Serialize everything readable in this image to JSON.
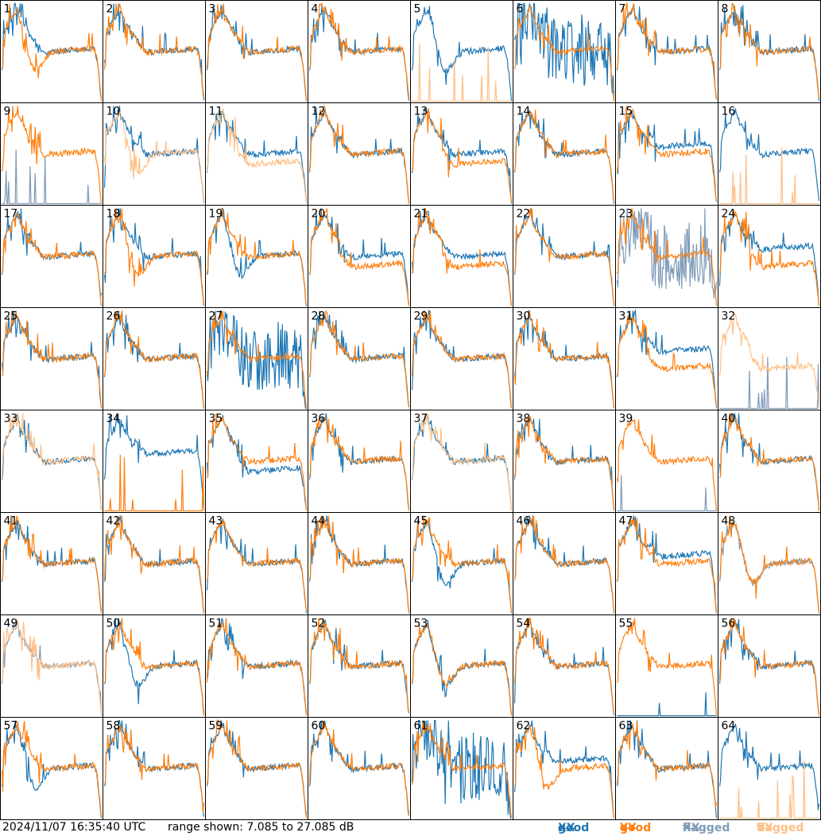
{
  "footer": {
    "timestamp": "2024/11/07 16:35:40 UTC",
    "range": "range shown: 7.085 to 27.085 dB"
  },
  "legend": [
    {
      "prefix": "good ",
      "pol": "XX",
      "color": "#1f77b4"
    },
    {
      "prefix": "good ",
      "pol": "YY",
      "color": "#ff7f0e"
    },
    {
      "prefix": "flagged ",
      "pol": "XX",
      "color": "#7f9bb8"
    },
    {
      "prefix": "flagged ",
      "pol": "YY",
      "color": "#ffbf86"
    }
  ],
  "colors": {
    "good_xx": "#1f77b4",
    "good_yy": "#ff7f0e",
    "flagged_xx": "#7f9bb8",
    "flagged_yy": "#ffbf86",
    "border": "#000000"
  },
  "chart_data": {
    "type": "line",
    "grid": "8x8 small multiples, one panel per input",
    "ylim_db": [
      7.085,
      27.085
    ],
    "series_names": [
      "XX",
      "YY"
    ],
    "panels": [
      {
        "label": "1",
        "xx": "good",
        "yy": "good",
        "xx_shape": "normal",
        "yy_shape": "dip"
      },
      {
        "label": "2",
        "xx": "good",
        "yy": "good",
        "xx_shape": "normal",
        "yy_shape": "normal"
      },
      {
        "label": "3",
        "xx": "good",
        "yy": "good",
        "xx_shape": "normal",
        "yy_shape": "normal"
      },
      {
        "label": "4",
        "xx": "good",
        "yy": "good",
        "xx_shape": "normal",
        "yy_shape": "normal"
      },
      {
        "label": "5",
        "xx": "good",
        "yy": "flagged",
        "xx_shape": "dip",
        "yy_shape": "dead"
      },
      {
        "label": "6",
        "xx": "good",
        "yy": "good",
        "xx_shape": "noisy",
        "yy_shape": "normal"
      },
      {
        "label": "7",
        "xx": "good",
        "yy": "good",
        "xx_shape": "normal",
        "yy_shape": "normal"
      },
      {
        "label": "8",
        "xx": "good",
        "yy": "good",
        "xx_shape": "normal",
        "yy_shape": "normal"
      },
      {
        "label": "9",
        "xx": "flagged",
        "yy": "good",
        "xx_shape": "dead",
        "yy_shape": "normal"
      },
      {
        "label": "10",
        "xx": "good",
        "yy": "flagged",
        "xx_shape": "normal",
        "yy_shape": "dip"
      },
      {
        "label": "11",
        "xx": "good",
        "yy": "flagged",
        "xx_shape": "normal",
        "yy_shape": "low"
      },
      {
        "label": "12",
        "xx": "good",
        "yy": "good",
        "xx_shape": "normal",
        "yy_shape": "normal"
      },
      {
        "label": "13",
        "xx": "good",
        "yy": "good",
        "xx_shape": "normal",
        "yy_shape": "low"
      },
      {
        "label": "14",
        "xx": "good",
        "yy": "good",
        "xx_shape": "normal",
        "yy_shape": "normal"
      },
      {
        "label": "15",
        "xx": "good",
        "yy": "good",
        "xx_shape": "high",
        "yy_shape": "normal"
      },
      {
        "label": "16",
        "xx": "good",
        "yy": "flagged",
        "xx_shape": "normal",
        "yy_shape": "dead"
      },
      {
        "label": "17",
        "xx": "good",
        "yy": "good",
        "xx_shape": "normal",
        "yy_shape": "normal"
      },
      {
        "label": "18",
        "xx": "good",
        "yy": "good",
        "xx_shape": "normal",
        "yy_shape": "dip"
      },
      {
        "label": "19",
        "xx": "good",
        "yy": "good",
        "xx_shape": "dip",
        "yy_shape": "normal"
      },
      {
        "label": "20",
        "xx": "good",
        "yy": "good",
        "xx_shape": "normal",
        "yy_shape": "low"
      },
      {
        "label": "21",
        "xx": "good",
        "yy": "good",
        "xx_shape": "normal",
        "yy_shape": "low"
      },
      {
        "label": "22",
        "xx": "good",
        "yy": "good",
        "xx_shape": "normal",
        "yy_shape": "normal"
      },
      {
        "label": "23",
        "xx": "flagged",
        "yy": "good",
        "xx_shape": "noisy",
        "yy_shape": "normal"
      },
      {
        "label": "24",
        "xx": "good",
        "yy": "good",
        "xx_shape": "high",
        "yy_shape": "low"
      },
      {
        "label": "25",
        "xx": "good",
        "yy": "good",
        "xx_shape": "normal",
        "yy_shape": "normal"
      },
      {
        "label": "26",
        "xx": "good",
        "yy": "good",
        "xx_shape": "normal",
        "yy_shape": "normal"
      },
      {
        "label": "27",
        "xx": "good",
        "yy": "good",
        "xx_shape": "noisy",
        "yy_shape": "normal"
      },
      {
        "label": "28",
        "xx": "good",
        "yy": "good",
        "xx_shape": "normal",
        "yy_shape": "normal"
      },
      {
        "label": "29",
        "xx": "good",
        "yy": "good",
        "xx_shape": "normal",
        "yy_shape": "normal"
      },
      {
        "label": "30",
        "xx": "good",
        "yy": "good",
        "xx_shape": "normal",
        "yy_shape": "normal"
      },
      {
        "label": "31",
        "xx": "good",
        "yy": "good",
        "xx_shape": "high",
        "yy_shape": "low"
      },
      {
        "label": "32",
        "xx": "flagged",
        "yy": "flagged",
        "xx_shape": "dead",
        "yy_shape": "low"
      },
      {
        "label": "33",
        "xx": "good",
        "yy": "flagged",
        "xx_shape": "normal",
        "yy_shape": "normal"
      },
      {
        "label": "34",
        "xx": "good",
        "yy": "good",
        "xx_shape": "high",
        "yy_shape": "dead"
      },
      {
        "label": "35",
        "xx": "good",
        "yy": "good",
        "xx_shape": "low",
        "yy_shape": "normal"
      },
      {
        "label": "36",
        "xx": "good",
        "yy": "good",
        "xx_shape": "normal",
        "yy_shape": "normal"
      },
      {
        "label": "37",
        "xx": "good",
        "yy": "flagged",
        "xx_shape": "normal",
        "yy_shape": "normal"
      },
      {
        "label": "38",
        "xx": "good",
        "yy": "good",
        "xx_shape": "normal",
        "yy_shape": "normal"
      },
      {
        "label": "39",
        "xx": "flagged",
        "yy": "good",
        "xx_shape": "dead",
        "yy_shape": "normal"
      },
      {
        "label": "40",
        "xx": "good",
        "yy": "good",
        "xx_shape": "normal",
        "yy_shape": "normal"
      },
      {
        "label": "41",
        "xx": "good",
        "yy": "good",
        "xx_shape": "normal",
        "yy_shape": "normal"
      },
      {
        "label": "42",
        "xx": "good",
        "yy": "good",
        "xx_shape": "normal",
        "yy_shape": "normal"
      },
      {
        "label": "43",
        "xx": "good",
        "yy": "good",
        "xx_shape": "normal",
        "yy_shape": "normal"
      },
      {
        "label": "44",
        "xx": "good",
        "yy": "good",
        "xx_shape": "normal",
        "yy_shape": "normal"
      },
      {
        "label": "45",
        "xx": "good",
        "yy": "good",
        "xx_shape": "dip",
        "yy_shape": "normal"
      },
      {
        "label": "46",
        "xx": "good",
        "yy": "good",
        "xx_shape": "normal",
        "yy_shape": "normal"
      },
      {
        "label": "47",
        "xx": "good",
        "yy": "good",
        "xx_shape": "high",
        "yy_shape": "normal"
      },
      {
        "label": "48",
        "xx": "flagged",
        "yy": "good",
        "xx_shape": "dip",
        "yy_shape": "dip"
      },
      {
        "label": "49",
        "xx": "flagged",
        "yy": "flagged",
        "xx_shape": "normal",
        "yy_shape": "normal"
      },
      {
        "label": "50",
        "xx": "good",
        "yy": "good",
        "xx_shape": "dip",
        "yy_shape": "normal"
      },
      {
        "label": "51",
        "xx": "good",
        "yy": "good",
        "xx_shape": "normal",
        "yy_shape": "normal"
      },
      {
        "label": "52",
        "xx": "good",
        "yy": "good",
        "xx_shape": "normal",
        "yy_shape": "normal"
      },
      {
        "label": "53",
        "xx": "good",
        "yy": "good",
        "xx_shape": "dip",
        "yy_shape": "dip"
      },
      {
        "label": "54",
        "xx": "good",
        "yy": "good",
        "xx_shape": "normal",
        "yy_shape": "normal"
      },
      {
        "label": "55",
        "xx": "good",
        "yy": "good",
        "xx_shape": "dead",
        "yy_shape": "normal"
      },
      {
        "label": "56",
        "xx": "good",
        "yy": "good",
        "xx_shape": "normal",
        "yy_shape": "normal"
      },
      {
        "label": "57",
        "xx": "good",
        "yy": "good",
        "xx_shape": "dip",
        "yy_shape": "normal"
      },
      {
        "label": "58",
        "xx": "good",
        "yy": "good",
        "xx_shape": "normal",
        "yy_shape": "normal"
      },
      {
        "label": "59",
        "xx": "good",
        "yy": "good",
        "xx_shape": "normal",
        "yy_shape": "normal"
      },
      {
        "label": "60",
        "xx": "good",
        "yy": "good",
        "xx_shape": "normal",
        "yy_shape": "normal"
      },
      {
        "label": "61",
        "xx": "good",
        "yy": "good",
        "xx_shape": "noisy",
        "yy_shape": "normal"
      },
      {
        "label": "62",
        "xx": "good",
        "yy": "good",
        "xx_shape": "high",
        "yy_shape": "dip"
      },
      {
        "label": "63",
        "xx": "good",
        "yy": "good",
        "xx_shape": "normal",
        "yy_shape": "normal"
      },
      {
        "label": "64",
        "xx": "good",
        "yy": "flagged",
        "xx_shape": "normal",
        "yy_shape": "dead"
      }
    ]
  }
}
